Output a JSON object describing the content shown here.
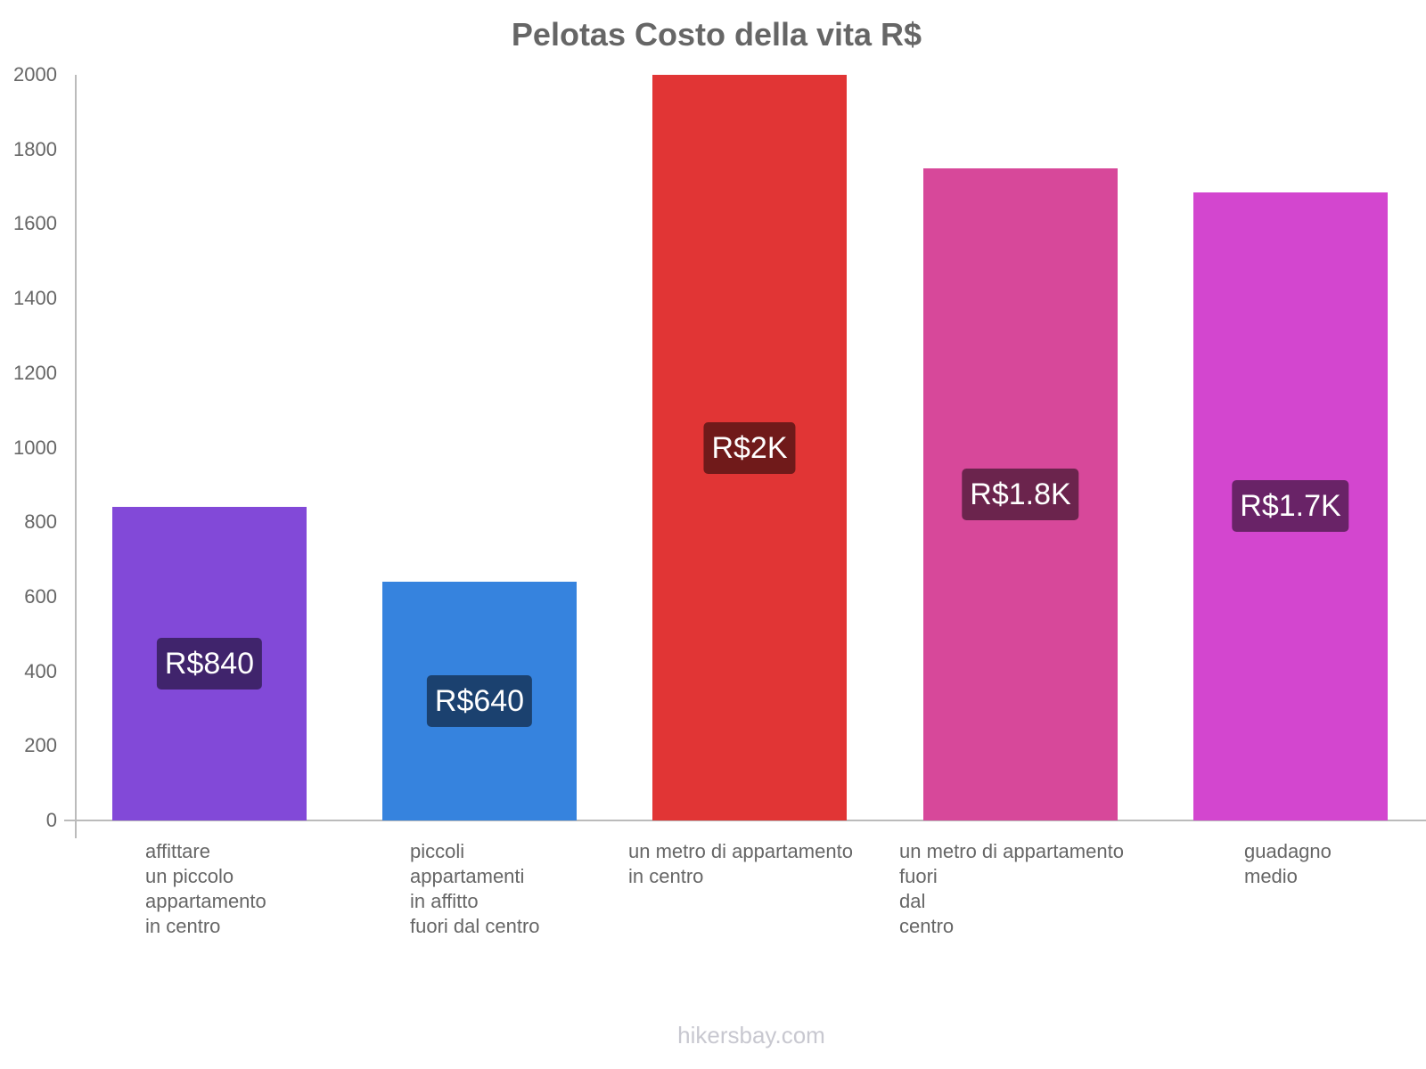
{
  "title": "Pelotas Costo della vita R$",
  "footer": "hikersbay.com",
  "y_ticks": [
    "2000",
    "1800",
    "1600",
    "1400",
    "1200",
    "1000",
    "800",
    "600",
    "400",
    "200",
    "0"
  ],
  "bars": [
    {
      "category": "affittare\nun piccolo\nappartamento\nin centro",
      "value": 840,
      "label": "R$840",
      "color": "#8249d8",
      "label_bg": "#40246c"
    },
    {
      "category": "piccoli\nappartamenti\nin affitto\nfuori dal centro",
      "value": 640,
      "label": "R$640",
      "color": "#3683de",
      "label_bg": "#1b416f"
    },
    {
      "category": "un metro di appartamento\nin centro",
      "value": 2000,
      "label": "R$2K",
      "color": "#e13535",
      "label_bg": "#701a1a"
    },
    {
      "category": "un metro di appartamento\nfuori\ndal\ncentro",
      "value": 1750,
      "label": "R$1.8K",
      "color": "#d7489a",
      "label_bg": "#6b244d"
    },
    {
      "category": "guadagno\nmedio",
      "value": 1685,
      "label": "R$1.7K",
      "color": "#d346cf",
      "label_bg": "#692367"
    }
  ],
  "chart_data": {
    "type": "bar",
    "title": "Pelotas Costo della vita R$",
    "categories": [
      "affittare un piccolo appartamento in centro",
      "piccoli appartamenti in affitto fuori dal centro",
      "un metro di appartamento in centro",
      "un metro di appartamento fuori dal centro",
      "guadagno medio"
    ],
    "values": [
      840,
      640,
      2000,
      1750,
      1685
    ],
    "data_labels": [
      "R$840",
      "R$640",
      "R$2K",
      "R$1.8K",
      "R$1.7K"
    ],
    "colors": [
      "#8249d8",
      "#3683de",
      "#e13535",
      "#d7489a",
      "#d346cf"
    ],
    "xlabel": "",
    "ylabel": "",
    "ylim": [
      0,
      2000
    ],
    "yticks": [
      0,
      200,
      400,
      600,
      800,
      1000,
      1200,
      1400,
      1600,
      1800,
      2000
    ],
    "grid": false,
    "legend": "none"
  }
}
